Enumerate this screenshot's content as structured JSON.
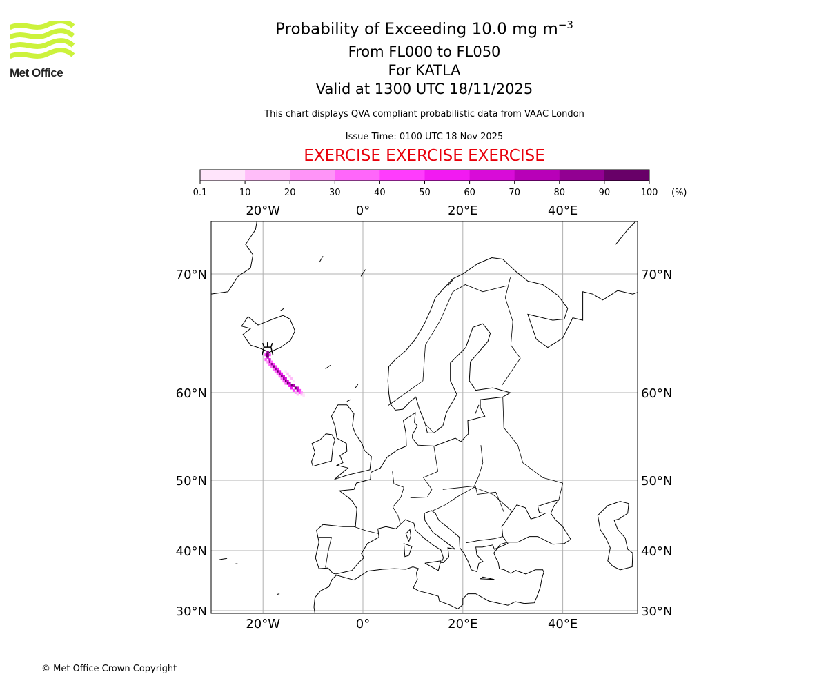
{
  "header": {
    "title": "Probability of Exceeding 10.0 mg m",
    "title_exponent": "−3",
    "level_range": "From FL000 to FL050",
    "volcano": "For KATLA",
    "valid_time": "Valid at 1300 UTC 18/11/2025",
    "description": "This chart displays QVA compliant probabilistic data from VAAC London",
    "issue_time": "Issue Time: 0100 UTC 18 Nov 2025",
    "exercise_banner": "EXERCISE EXERCISE EXERCISE"
  },
  "logo": {
    "text": "Met Office",
    "color": "#ccf23c"
  },
  "copyright": "© Met Office Crown Copyright",
  "colors": {
    "exercise": "#e8000b",
    "grid": "#b0b0b0"
  },
  "chart_data": {
    "type": "heatmap",
    "title": "Probability of Exceeding 10.0 mg m−3",
    "colorbar": {
      "unit": "(%)",
      "ticks": [
        "0.1",
        "10",
        "20",
        "30",
        "40",
        "50",
        "60",
        "70",
        "80",
        "90",
        "100"
      ],
      "colors": [
        "#ffe4fb",
        "#ffbdf9",
        "#ff94f8",
        "#ff66fa",
        "#ff3cfd",
        "#f21af2",
        "#d80cd8",
        "#b800b8",
        "#920092",
        "#680068"
      ]
    },
    "x_ticks": [
      {
        "lon": -20,
        "label": "20°W"
      },
      {
        "lon": 0,
        "label": "0°"
      },
      {
        "lon": 20,
        "label": "20°E"
      },
      {
        "lon": 40,
        "label": "40°E"
      }
    ],
    "y_ticks": [
      {
        "lat": 70,
        "label": "70°N"
      },
      {
        "lat": 60,
        "label": "60°N"
      },
      {
        "lat": 50,
        "label": "50°N"
      },
      {
        "lat": 40,
        "label": "40°N"
      },
      {
        "lat": 30,
        "label": "30°N"
      }
    ],
    "lon_range": [
      -30.5,
      55
    ],
    "lat_range": [
      29.7,
      73.5
    ],
    "volcano": {
      "name": "KATLA",
      "lon": -19.1,
      "lat": 63.6
    },
    "cells": [
      [
        -19.1,
        63.4,
        85
      ],
      [
        -19.5,
        63.2,
        40
      ],
      [
        -18.7,
        63.2,
        40
      ],
      [
        -19.1,
        63.0,
        75
      ],
      [
        -19.5,
        62.8,
        35
      ],
      [
        -18.7,
        62.8,
        60
      ],
      [
        -18.7,
        62.6,
        80
      ],
      [
        -18.3,
        62.6,
        35
      ],
      [
        -19.1,
        62.6,
        25
      ],
      [
        -18.3,
        62.4,
        85
      ],
      [
        -17.9,
        62.4,
        45
      ],
      [
        -18.7,
        62.4,
        30
      ],
      [
        -17.9,
        62.2,
        90
      ],
      [
        -17.5,
        62.2,
        45
      ],
      [
        -18.3,
        62.2,
        30
      ],
      [
        -17.5,
        62.0,
        85
      ],
      [
        -17.1,
        62.0,
        50
      ],
      [
        -17.9,
        62.0,
        35
      ],
      [
        -17.1,
        61.8,
        90
      ],
      [
        -16.7,
        61.8,
        55
      ],
      [
        -17.5,
        61.8,
        30
      ],
      [
        -16.7,
        61.6,
        85
      ],
      [
        -16.3,
        61.6,
        55
      ],
      [
        -17.1,
        61.6,
        35
      ],
      [
        -16.3,
        61.4,
        90
      ],
      [
        -15.9,
        61.4,
        60
      ],
      [
        -16.7,
        61.4,
        30
      ],
      [
        -15.9,
        61.2,
        85
      ],
      [
        -15.5,
        61.2,
        60
      ],
      [
        -16.3,
        61.2,
        35
      ],
      [
        -15.5,
        61.0,
        90
      ],
      [
        -15.1,
        61.0,
        65
      ],
      [
        -15.9,
        61.0,
        30
      ],
      [
        -15.1,
        60.8,
        90
      ],
      [
        -14.7,
        60.8,
        70
      ],
      [
        -15.5,
        60.8,
        35
      ],
      [
        -14.3,
        60.6,
        95
      ],
      [
        -13.9,
        60.6,
        75
      ],
      [
        -14.7,
        60.6,
        50
      ],
      [
        -13.5,
        60.4,
        90
      ],
      [
        -13.1,
        60.4,
        60
      ],
      [
        -14.3,
        60.4,
        55
      ],
      [
        -13.1,
        60.2,
        70
      ],
      [
        -12.7,
        60.2,
        40
      ],
      [
        -13.9,
        60.2,
        45
      ],
      [
        -12.7,
        60.0,
        40
      ],
      [
        -12.3,
        60.0,
        20
      ],
      [
        -13.5,
        60.0,
        25
      ],
      [
        -12.3,
        59.8,
        15
      ],
      [
        -11.9,
        59.8,
        8
      ],
      [
        -13.1,
        59.8,
        10
      ],
      [
        -11.9,
        59.6,
        5
      ],
      [
        -15.1,
        61.6,
        10
      ],
      [
        -14.7,
        61.4,
        12
      ],
      [
        -14.3,
        61.2,
        10
      ],
      [
        -13.9,
        61.0,
        8
      ],
      [
        -15.5,
        61.8,
        6
      ]
    ]
  }
}
